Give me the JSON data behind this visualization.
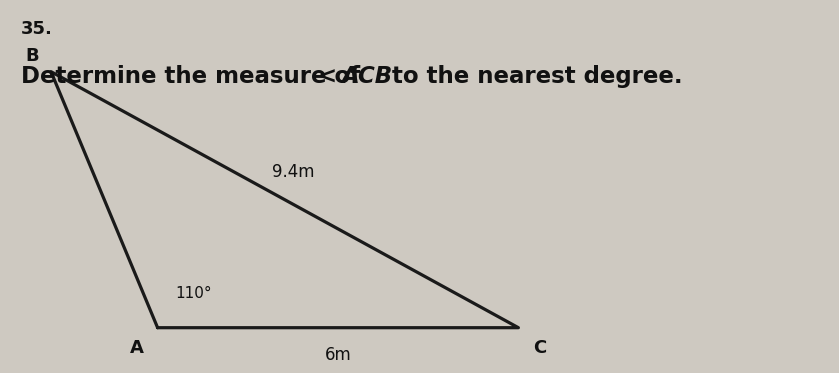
{
  "title_number": "35.",
  "bg_color": "#cec9c1",
  "triangle": {
    "A": [
      0.18,
      0.08
    ],
    "B": [
      0.05,
      0.82
    ],
    "C": [
      0.62,
      0.08
    ]
  },
  "labels": {
    "A": "A",
    "B": "B",
    "C": "C"
  },
  "side_labels": {
    "BC": "9.4m",
    "AC": "6m"
  },
  "angle_label": "110°",
  "line_color": "#1a1a1a",
  "text_color": "#111111",
  "font_size_question": 16.5,
  "font_size_title": 13,
  "font_size_labels": 13,
  "font_size_side_labels": 12,
  "font_size_angle": 11
}
